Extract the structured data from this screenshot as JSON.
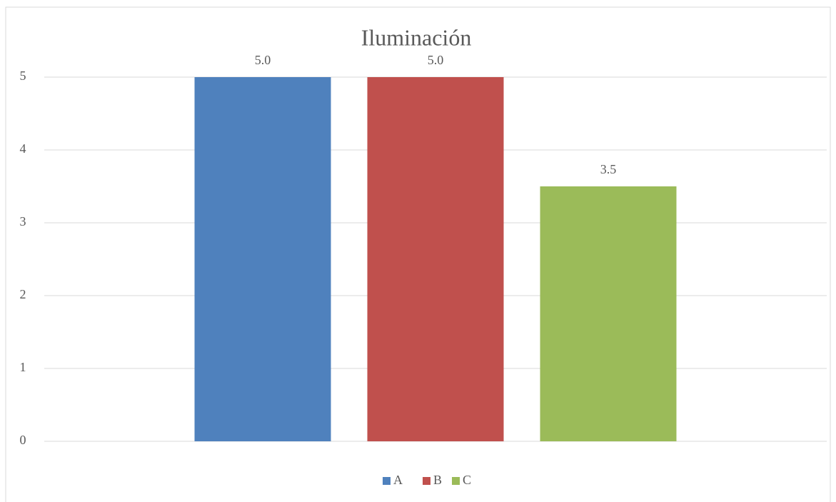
{
  "chart_data": {
    "type": "bar",
    "title": "Iluminación",
    "categories": [
      null
    ],
    "series": [
      {
        "name": "A",
        "color": "#4f81bd",
        "values": [
          5
        ],
        "value_labels": [
          "5.0"
        ]
      },
      {
        "name": "B",
        "color": "#c0504d",
        "values": [
          5
        ],
        "value_labels": [
          "5.0"
        ]
      },
      {
        "name": "C",
        "color": "#9bbb59",
        "values": [
          3.5
        ],
        "value_labels": [
          "3.5"
        ]
      }
    ],
    "ylim": [
      0,
      5
    ],
    "yticks": [
      0,
      1,
      2,
      3,
      4,
      5
    ],
    "grid": true,
    "legend": "bottom"
  }
}
